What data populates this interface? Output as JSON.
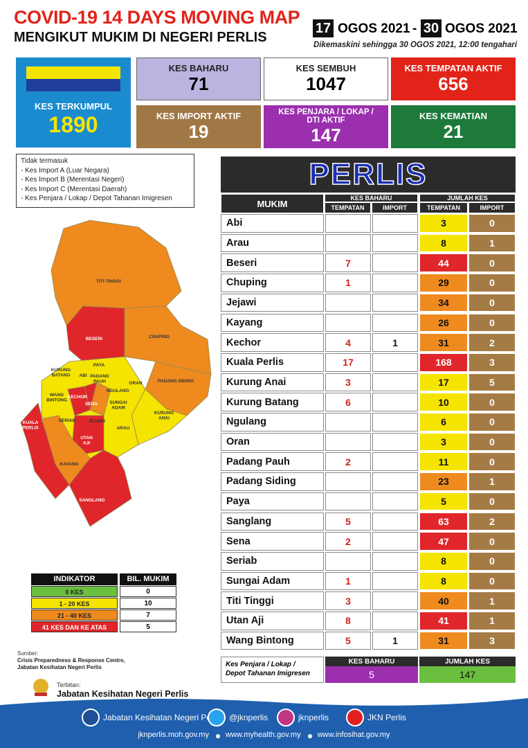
{
  "header": {
    "title": "COVID-19 14 DAYS MOVING MAP",
    "subtitle": "MENGIKUT MUKIM DI NEGERI PERLIS",
    "date_from_day": "17",
    "date_from_month": "OGOS 2021",
    "date_separator": "-",
    "date_to_day": "30",
    "date_to_month": "OGOS 2021",
    "updated": "Dikemaskini sehingga 30 OGOS  2021, 12:00 tengahari"
  },
  "stats": {
    "total": {
      "label": "KES TERKUMPUL",
      "value": 1890
    },
    "new": {
      "label": "KES BAHARU",
      "value": 71
    },
    "recovered": {
      "label": "KES SEMBUH",
      "value": 1047
    },
    "local_active": {
      "label": "KES TEMPATAN AKTIF",
      "value": 656
    },
    "import_active": {
      "label": "KES IMPORT AKTIF",
      "value": 19
    },
    "prison_active": {
      "label": [
        "KES PENJARA / LOKAP /",
        "DTI AKTIF"
      ],
      "value": 147
    },
    "deaths": {
      "label": "KES KEMATIAN",
      "value": 21
    }
  },
  "notes": {
    "heading": "Tidak termasuk",
    "items": [
      "- Kes Import A (Luar Negara)",
      "- Kes Import B (Merentasi Negeri)",
      "- Kes Import C (Merentasi Daerah)",
      "- Kes Penjara / Lokap / Depot Tahanan Imigresen"
    ]
  },
  "map": {
    "labels": [
      [
        "TITI TINGGI"
      ],
      [
        "BESERI"
      ],
      [
        "CHUPING"
      ],
      [
        "PAYA"
      ],
      [
        "KURUNG",
        "BATANG"
      ],
      [
        "ABI"
      ],
      [
        "PADANG",
        "PAUH"
      ],
      [
        "NGULANG"
      ],
      [
        "ORAN"
      ],
      [
        "PADANG SIDING"
      ],
      [
        "WANG",
        "BINTONG"
      ],
      [
        "KECHOR"
      ],
      [
        "SENA"
      ],
      [
        "SUNGAI",
        "ADAM"
      ],
      [
        "SERIAB"
      ],
      [
        "JEJAWI"
      ],
      [
        "KURUNG",
        "ANAI"
      ],
      [
        "KUALA",
        "PERLIS"
      ],
      [
        "UTAN",
        "AJI"
      ],
      [
        "ARAU"
      ],
      [
        "KAYANG"
      ],
      [
        "SANGLANG"
      ]
    ]
  },
  "table": {
    "title": "PERLIS",
    "headers": {
      "mukim": "MUKIM",
      "new": "KES BAHARU",
      "total": "JUMLAH KES",
      "local": "TEMPATAN",
      "import": "IMPORT"
    },
    "rows": [
      [
        "Abi",
        null,
        null,
        3,
        0
      ],
      [
        "Arau",
        null,
        null,
        8,
        1
      ],
      [
        "Beseri",
        7,
        null,
        44,
        0
      ],
      [
        "Chuping",
        1,
        null,
        29,
        0
      ],
      [
        "Jejawi",
        null,
        null,
        34,
        0
      ],
      [
        "Kayang",
        null,
        null,
        26,
        0
      ],
      [
        "Kechor",
        4,
        1,
        31,
        2
      ],
      [
        "Kuala Perlis",
        17,
        null,
        168,
        3
      ],
      [
        "Kurung Anai",
        3,
        null,
        17,
        5
      ],
      [
        "Kurung Batang",
        6,
        null,
        10,
        0
      ],
      [
        "Ngulang",
        null,
        null,
        6,
        0
      ],
      [
        "Oran",
        null,
        null,
        3,
        0
      ],
      [
        "Padang Pauh",
        2,
        null,
        11,
        0
      ],
      [
        "Padang Siding",
        null,
        null,
        23,
        1
      ],
      [
        "Paya",
        null,
        null,
        5,
        0
      ],
      [
        "Sanglang",
        5,
        null,
        63,
        2
      ],
      [
        "Sena",
        2,
        null,
        47,
        0
      ],
      [
        "Seriab",
        null,
        null,
        8,
        0
      ],
      [
        "Sungai Adam",
        1,
        null,
        8,
        0
      ],
      [
        "Titi Tinggi",
        3,
        null,
        40,
        1
      ],
      [
        "Utan Aji",
        8,
        null,
        41,
        1
      ],
      [
        "Wang Bintong",
        5,
        1,
        31,
        3
      ]
    ],
    "prison": {
      "label": [
        "Kes Penjara / Lokap /",
        "Depot Tahanan Imigresen"
      ],
      "new_label": "KES BAHARU",
      "new": 5,
      "total_label": "JUMLAH KES",
      "total": 147
    }
  },
  "legend": {
    "headers": [
      "INDIKATOR",
      "BIL. MUKIM"
    ],
    "rows": [
      [
        "0 KES",
        0
      ],
      [
        "1 - 20 KES",
        10
      ],
      [
        "21 - 40 KES",
        7
      ],
      [
        "41 KES DAN KE ATAS",
        5
      ]
    ]
  },
  "source": {
    "label": "Sumber:",
    "lines": [
      "Crisis Preparedness & Response Centre,",
      "Jabatan Kesihatan Negeri Perlis"
    ],
    "publisher_label": "Terbitan:",
    "publisher": "Jabatan Kesihatan Negeri Perlis"
  },
  "footer": {
    "social": [
      "Jabatan Kesihatan Negeri Perlis",
      "@jknperlis",
      "jknperlis",
      "JKN Perlis"
    ],
    "websites": [
      "jknperlis.moh.gov.my",
      "www.myhealth.gov.my",
      "www.infosihat.gov.my"
    ]
  }
}
